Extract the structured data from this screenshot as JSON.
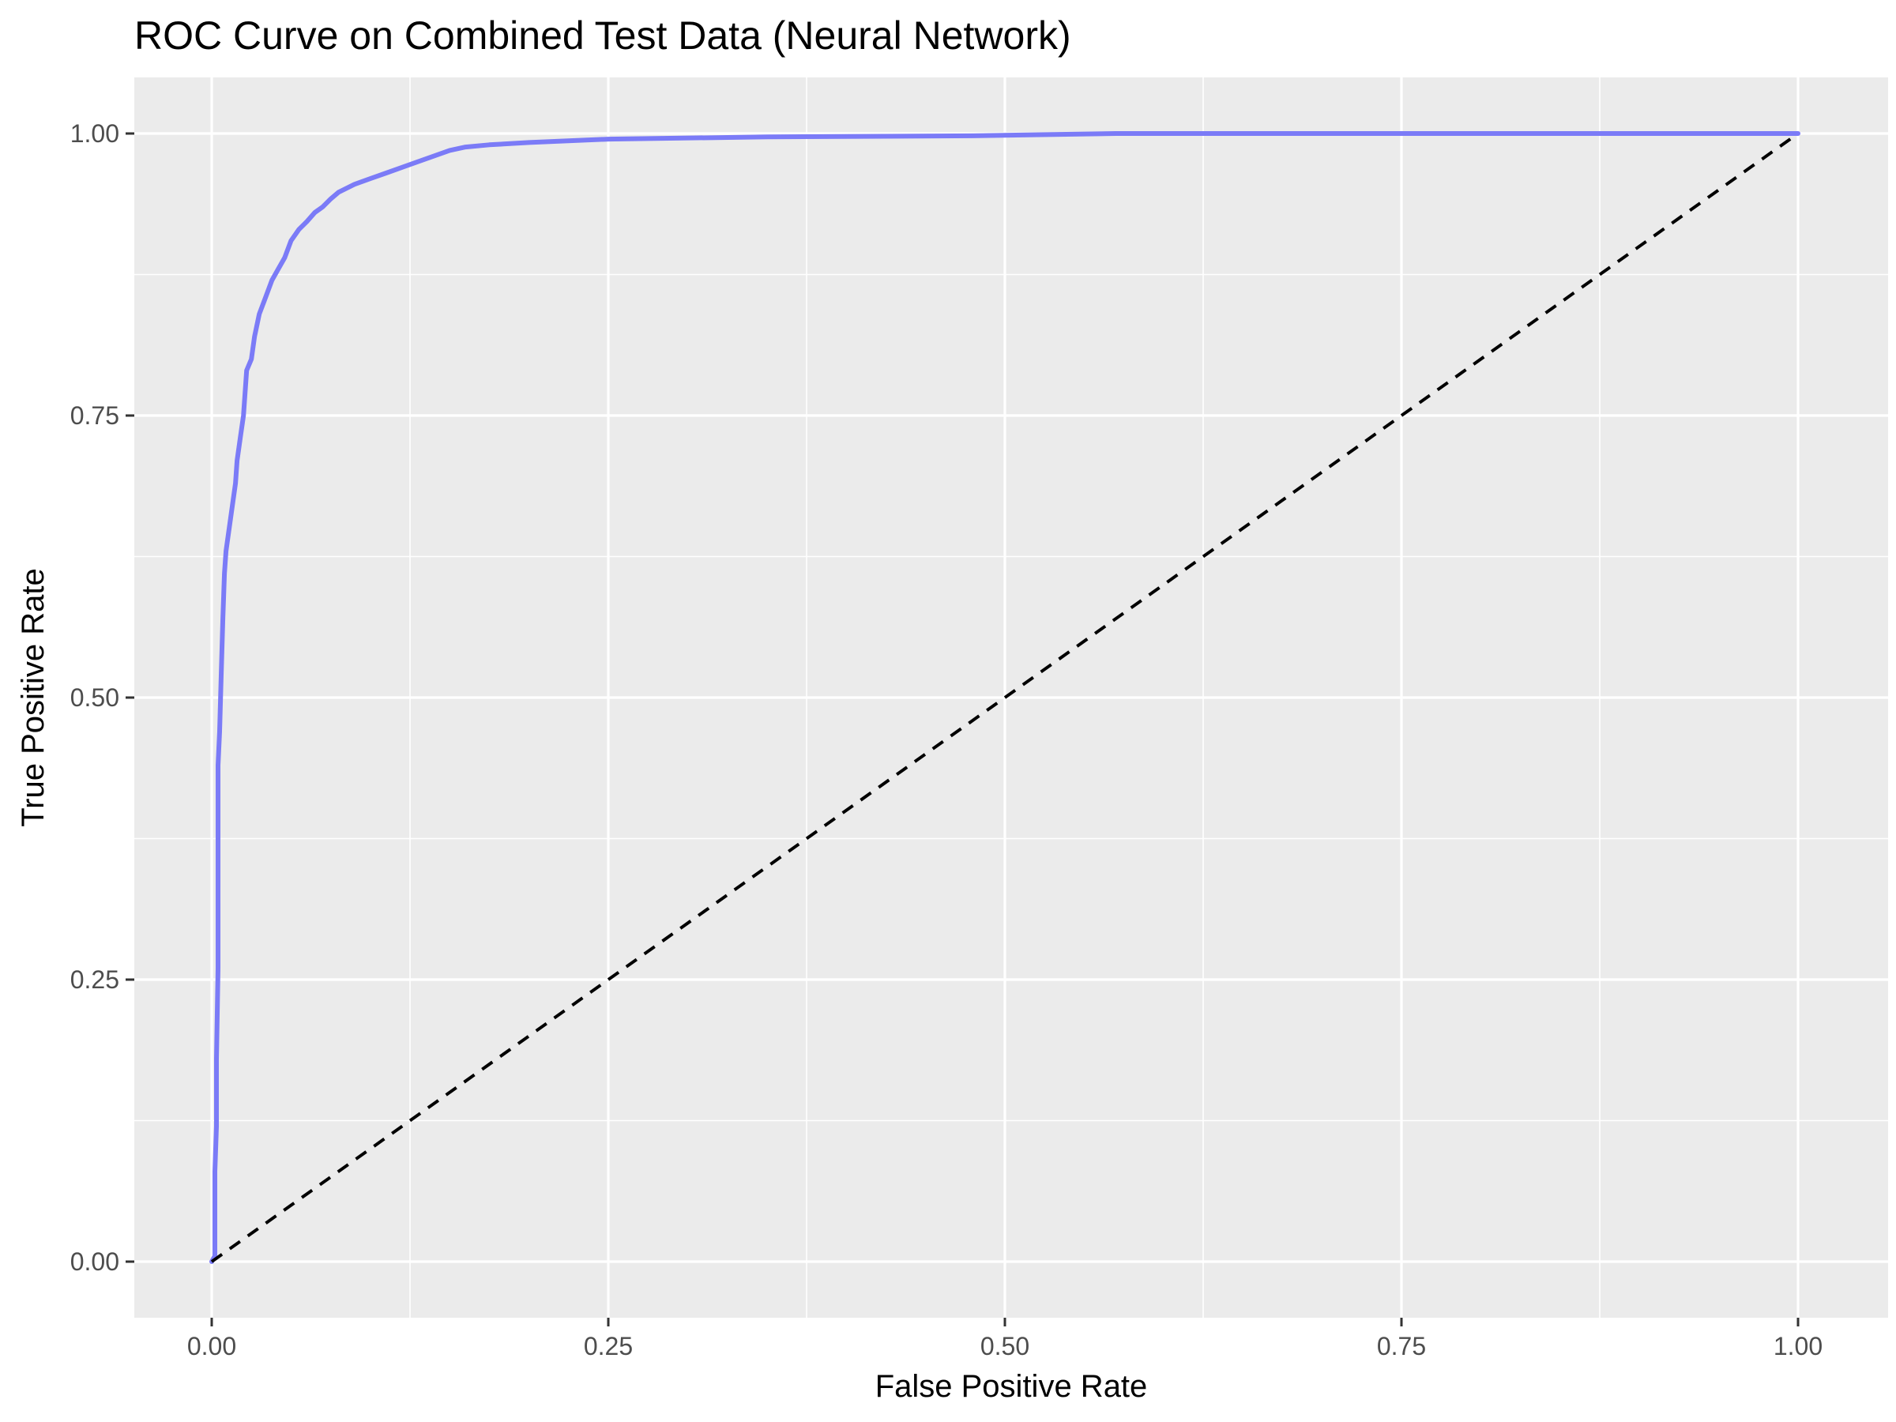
{
  "chart_data": {
    "type": "line",
    "title": "ROC Curve on Combined Test Data (Neural Network)",
    "xlabel": "False Positive Rate",
    "ylabel": "True Positive Rate",
    "xlim": [
      0,
      1
    ],
    "ylim": [
      0,
      1
    ],
    "x_ticks": [
      0,
      0.25,
      0.5,
      0.75,
      1
    ],
    "x_tick_labels": [
      "0.00",
      "0.25",
      "0.50",
      "0.75",
      "1.00"
    ],
    "y_ticks": [
      0,
      0.25,
      0.5,
      0.75,
      1
    ],
    "y_tick_labels": [
      "0.00",
      "0.25",
      "0.50",
      "0.75",
      "1.00"
    ],
    "grid": true,
    "legend": "none",
    "panel_background": "#ebebeb",
    "series": [
      {
        "color": "#7b7bf7",
        "style": "solid",
        "points": [
          [
            0,
            0
          ],
          [
            0.002,
            0.005
          ],
          [
            0.002,
            0.08
          ],
          [
            0.003,
            0.12
          ],
          [
            0.003,
            0.18
          ],
          [
            0.004,
            0.26
          ],
          [
            0.004,
            0.35
          ],
          [
            0.004,
            0.44
          ],
          [
            0.005,
            0.47
          ],
          [
            0.006,
            0.52
          ],
          [
            0.007,
            0.57
          ],
          [
            0.008,
            0.61
          ],
          [
            0.009,
            0.63
          ],
          [
            0.011,
            0.65
          ],
          [
            0.013,
            0.67
          ],
          [
            0.015,
            0.69
          ],
          [
            0.016,
            0.71
          ],
          [
            0.018,
            0.73
          ],
          [
            0.02,
            0.75
          ],
          [
            0.021,
            0.77
          ],
          [
            0.022,
            0.79
          ],
          [
            0.025,
            0.8
          ],
          [
            0.027,
            0.82
          ],
          [
            0.03,
            0.84
          ],
          [
            0.034,
            0.855
          ],
          [
            0.038,
            0.87
          ],
          [
            0.042,
            0.88
          ],
          [
            0.046,
            0.89
          ],
          [
            0.05,
            0.905
          ],
          [
            0.055,
            0.915
          ],
          [
            0.06,
            0.922
          ],
          [
            0.065,
            0.93
          ],
          [
            0.07,
            0.935
          ],
          [
            0.075,
            0.942
          ],
          [
            0.08,
            0.948
          ],
          [
            0.09,
            0.955
          ],
          [
            0.1,
            0.96
          ],
          [
            0.11,
            0.965
          ],
          [
            0.12,
            0.97
          ],
          [
            0.13,
            0.975
          ],
          [
            0.14,
            0.98
          ],
          [
            0.15,
            0.985
          ],
          [
            0.16,
            0.988
          ],
          [
            0.175,
            0.99
          ],
          [
            0.2,
            0.992
          ],
          [
            0.25,
            0.995
          ],
          [
            0.35,
            0.997
          ],
          [
            0.48,
            0.998
          ],
          [
            0.57,
            1.0
          ],
          [
            1.0,
            1.0
          ]
        ]
      },
      {
        "color": "#000000",
        "style": "dashed",
        "points": [
          [
            0,
            0
          ],
          [
            1,
            1
          ]
        ]
      }
    ]
  }
}
